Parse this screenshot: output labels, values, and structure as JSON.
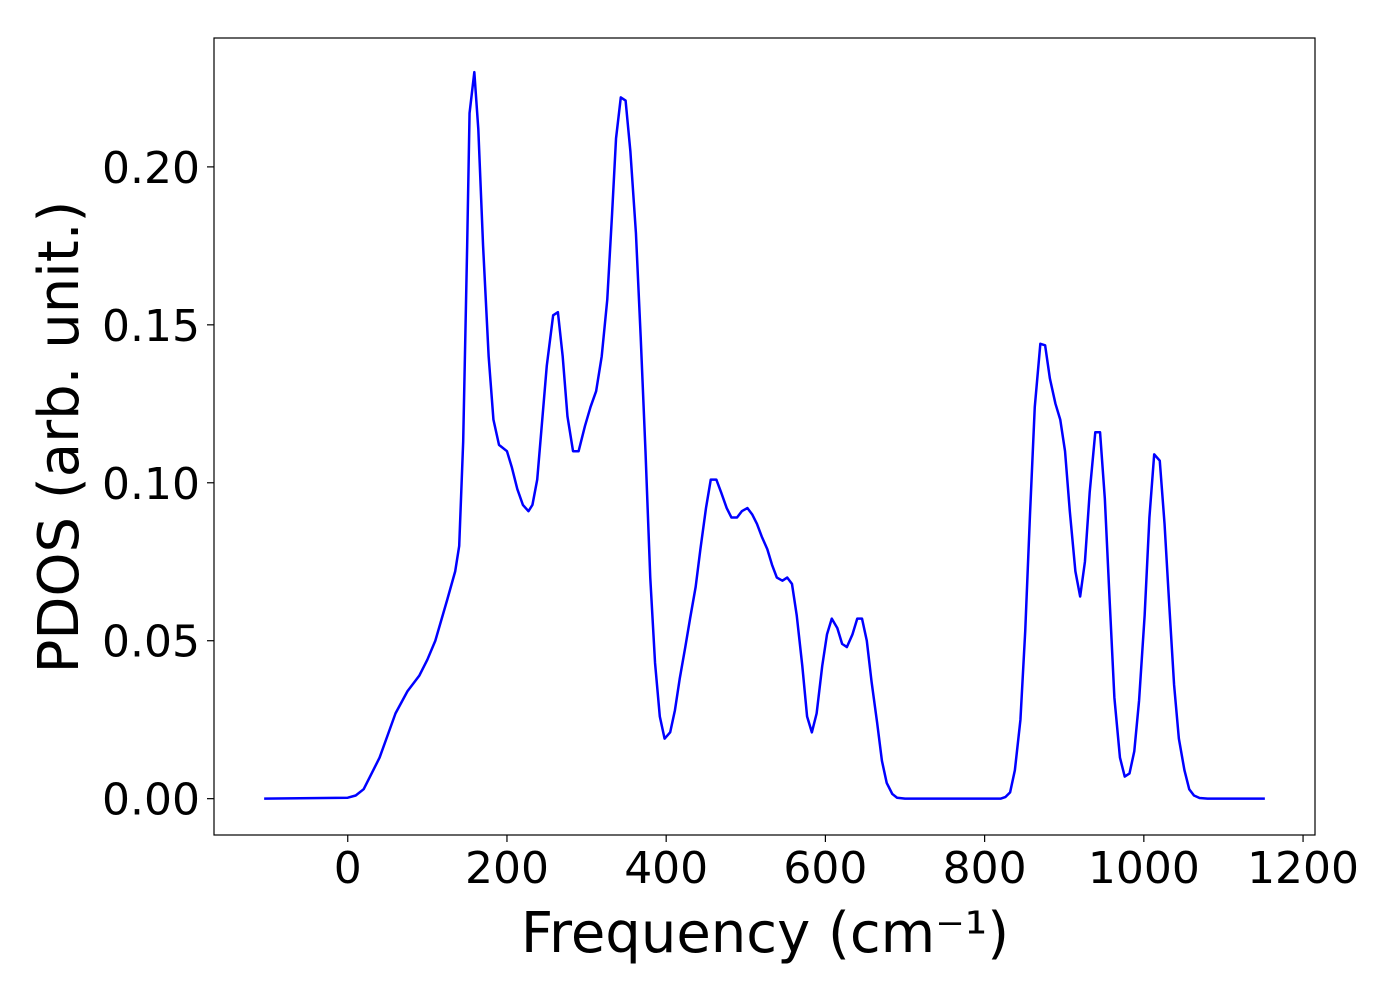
{
  "chart_data": {
    "type": "line",
    "xlabel": "Frequency (cm⁻¹)",
    "ylabel": "PDOS (arb. unit.)",
    "xlim": [
      -168,
      1215
    ],
    "ylim": [
      -0.0115,
      0.2408
    ],
    "xticks": [
      0,
      200,
      400,
      600,
      800,
      1000,
      1200
    ],
    "yticks": [
      {
        "value": 0,
        "label": "0.00"
      },
      {
        "value": 0.05,
        "label": "0.05"
      },
      {
        "value": 0.1,
        "label": "0.10"
      },
      {
        "value": 0.15,
        "label": "0.15"
      },
      {
        "value": 0.2,
        "label": "0.20"
      }
    ],
    "x": [
      -105,
      0,
      10,
      20,
      30,
      40,
      50,
      60,
      75,
      90,
      100,
      110,
      125,
      135,
      140,
      145,
      150,
      153,
      159,
      164,
      170,
      177,
      183,
      190,
      200,
      206,
      213,
      220,
      227,
      232,
      238,
      243,
      250,
      258,
      264,
      270,
      276,
      283,
      290,
      298,
      305,
      312,
      319,
      326,
      332,
      337,
      343,
      349,
      355,
      362,
      368,
      374,
      380,
      386,
      392,
      398,
      405,
      411,
      417,
      424,
      430,
      437,
      443,
      450,
      456,
      463,
      469,
      476,
      482,
      489,
      495,
      502,
      508,
      514,
      520,
      527,
      533,
      539,
      546,
      552,
      558,
      564,
      571,
      577,
      583,
      589,
      596,
      602,
      608,
      615,
      621,
      627,
      634,
      640,
      646,
      652,
      658,
      665,
      671,
      677,
      684,
      690,
      700,
      820,
      826,
      832,
      838,
      845,
      851,
      857,
      863,
      870,
      876,
      882,
      889,
      895,
      901,
      907,
      914,
      920,
      926,
      932,
      939,
      945,
      951,
      957,
      963,
      970,
      976,
      982,
      988,
      994,
      1001,
      1007,
      1013,
      1020,
      1026,
      1032,
      1038,
      1044,
      1051,
      1057,
      1063,
      1070,
      1080,
      1152
    ],
    "series": [
      {
        "color": "#0000ff",
        "values": [
          0,
          0.0003,
          0.001,
          0.003,
          0.008,
          0.013,
          0.02,
          0.027,
          0.034,
          0.039,
          0.044,
          0.05,
          0.063,
          0.072,
          0.08,
          0.113,
          0.175,
          0.217,
          0.23,
          0.212,
          0.175,
          0.14,
          0.12,
          0.112,
          0.11,
          0.105,
          0.098,
          0.093,
          0.091,
          0.093,
          0.101,
          0.116,
          0.137,
          0.153,
          0.154,
          0.14,
          0.121,
          0.11,
          0.11,
          0.118,
          0.124,
          0.129,
          0.14,
          0.158,
          0.185,
          0.209,
          0.222,
          0.221,
          0.205,
          0.179,
          0.146,
          0.11,
          0.07,
          0.043,
          0.026,
          0.019,
          0.021,
          0.028,
          0.038,
          0.048,
          0.057,
          0.067,
          0.079,
          0.092,
          0.101,
          0.101,
          0.097,
          0.092,
          0.089,
          0.089,
          0.091,
          0.092,
          0.09,
          0.087,
          0.083,
          0.079,
          0.074,
          0.07,
          0.069,
          0.07,
          0.068,
          0.058,
          0.042,
          0.026,
          0.021,
          0.027,
          0.042,
          0.052,
          0.057,
          0.054,
          0.049,
          0.048,
          0.052,
          0.057,
          0.057,
          0.05,
          0.037,
          0.024,
          0.012,
          0.005,
          0.0015,
          0.0003,
          0,
          0,
          0.0005,
          0.002,
          0.009,
          0.025,
          0.053,
          0.09,
          0.124,
          0.144,
          0.1435,
          0.133,
          0.125,
          0.12,
          0.11,
          0.091,
          0.072,
          0.064,
          0.075,
          0.097,
          0.116,
          0.116,
          0.095,
          0.063,
          0.032,
          0.013,
          0.007,
          0.008,
          0.015,
          0.031,
          0.058,
          0.089,
          0.109,
          0.107,
          0.087,
          0.061,
          0.036,
          0.019,
          0.009,
          0.003,
          0.001,
          0.0002,
          0,
          0
        ]
      }
    ]
  }
}
